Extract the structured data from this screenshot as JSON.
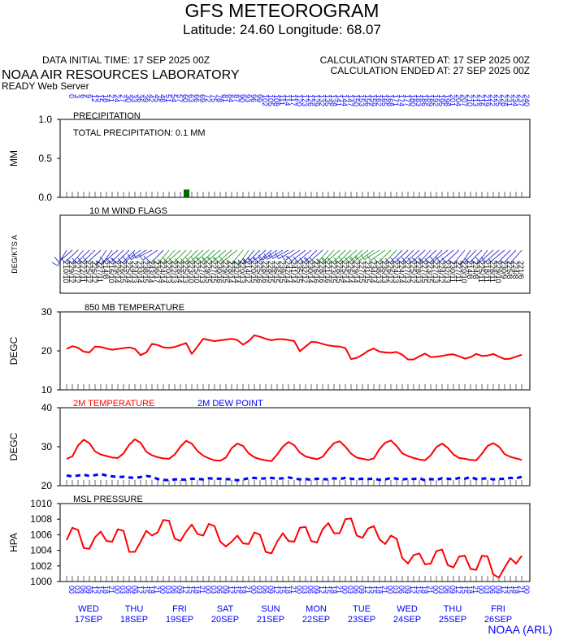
{
  "header": {
    "title": "GFS METEOROGRAM",
    "location": "Latitude: 24.60 Longitude:  68.07",
    "initial_time": "DATA INITIAL TIME: 17 SEP 2025 00Z",
    "calc_started": "CALCULATION STARTED AT: 17 SEP 2025 00Z",
    "calc_ended": "CALCULATION ENDED AT: 27 SEP 2025 00Z",
    "lab": "NOAA AIR RESOURCES LABORATORY",
    "server": "READY Web Server",
    "credit": "NOAA (ARL)"
  },
  "colors": {
    "red": "#ff0000",
    "blue": "#0000ff",
    "green": "#006600",
    "wind_blue": "#3333cc",
    "wind_green": "#339933"
  },
  "forecast_hours": [
    0,
    3,
    6,
    9,
    12,
    15,
    18,
    21,
    24,
    27,
    30,
    33,
    36,
    39,
    42,
    45,
    48,
    51,
    54,
    57,
    60,
    63,
    66,
    69,
    72,
    75,
    78,
    81,
    84,
    87,
    90,
    93,
    96,
    99,
    102,
    105,
    108,
    111,
    114,
    117,
    120,
    123,
    126,
    129,
    132,
    135,
    138,
    141,
    144,
    147,
    150,
    153,
    156,
    159,
    162,
    165,
    168,
    171,
    174,
    177,
    180,
    183,
    186,
    189,
    192,
    195,
    198,
    201,
    204,
    207,
    210,
    213,
    216,
    219,
    222,
    225,
    228,
    231,
    234,
    237,
    240
  ],
  "hour_labels": [
    "00",
    "03",
    "06",
    "09",
    "12",
    "15",
    "18",
    "21"
  ],
  "days": [
    {
      "dow": "WED",
      "date": "17SEP"
    },
    {
      "dow": "THU",
      "date": "18SEP"
    },
    {
      "dow": "FRI",
      "date": "19SEP"
    },
    {
      "dow": "SAT",
      "date": "20SEP"
    },
    {
      "dow": "SUN",
      "date": "21SEP"
    },
    {
      "dow": "MON",
      "date": "22SEP"
    },
    {
      "dow": "TUE",
      "date": "23SEP"
    },
    {
      "dow": "WED",
      "date": "24SEP"
    },
    {
      "dow": "THU",
      "date": "25SEP"
    },
    {
      "dow": "FRI",
      "date": "26SEP"
    }
  ],
  "chart_data": [
    {
      "type": "bar",
      "title": "PRECIPITATION",
      "annotation": "TOTAL PRECIPITATION:   0.1 MM",
      "ylabel": "MM",
      "ylim": [
        0,
        1
      ],
      "yticks": [
        "0.0",
        "0.5",
        "1.0"
      ],
      "x_hours": [
        63
      ],
      "values": [
        0.1
      ]
    },
    {
      "type": "table",
      "title": "10 M  WIND FLAGS",
      "ylabel": "DEG/KTS  A",
      "directions": [
        210,
        229,
        227,
        222,
        225,
        226,
        227,
        214,
        216,
        229,
        226,
        225,
        224,
        233,
        238,
        243,
        236,
        224,
        220,
        222,
        228,
        225,
        223,
        225,
        227,
        229,
        227,
        230,
        229,
        228,
        232,
        220,
        214,
        220,
        225,
        228,
        228,
        236,
        239,
        242,
        241,
        235,
        232,
        230,
        226,
        228,
        221,
        223,
        228,
        225,
        226,
        229,
        227,
        231,
        234,
        238,
        235,
        226,
        224,
        224,
        227,
        225,
        228,
        227,
        223,
        227,
        224,
        232,
        230,
        227,
        220,
        214,
        224,
        225,
        218,
        228,
        229,
        230,
        225,
        224,
        221
      ],
      "speeds": [
        10,
        12,
        12,
        11,
        12,
        12,
        11,
        8,
        10,
        14,
        15,
        14,
        13,
        14,
        15,
        14,
        17,
        14,
        13,
        13,
        14,
        13,
        10,
        10,
        13,
        15,
        15,
        16,
        15,
        14,
        14,
        13,
        12,
        15,
        16,
        16,
        15,
        15,
        15,
        14,
        14,
        15,
        12,
        14,
        16,
        16,
        16,
        15,
        15,
        14,
        14,
        14,
        15,
        15,
        14,
        13,
        13,
        12,
        13,
        14,
        13,
        12,
        13,
        15,
        15,
        13,
        12,
        13,
        11,
        11,
        10,
        8,
        8,
        11,
        11,
        11,
        10,
        9,
        8,
        8,
        6
      ]
    },
    {
      "type": "line",
      "title": "850 MB  TEMPERATURE",
      "ylabel": "DEGC",
      "ylim": [
        10,
        30
      ],
      "yticks": [
        "10",
        "20",
        "30"
      ],
      "series": [
        {
          "values": [
            20.5,
            21.2,
            20.8,
            19.8,
            19.6,
            21.1,
            21.0,
            20.6,
            20.3,
            20.5,
            20.7,
            20.9,
            20.5,
            18.9,
            19.6,
            21.8,
            21.5,
            20.9,
            20.8,
            21.0,
            21.5,
            22.0,
            19.2,
            21.1,
            23.1,
            22.8,
            22.5,
            22.7,
            22.9,
            23.1,
            22.8,
            21.6,
            22.5,
            24.0,
            23.6,
            23.1,
            22.7,
            23.0,
            23.0,
            22.8,
            22.5,
            19.9,
            21.1,
            22.3,
            22.2,
            21.8,
            21.4,
            21.2,
            21.1,
            20.7,
            17.9,
            18.2,
            19.0,
            20.0,
            20.6,
            19.8,
            19.6,
            19.5,
            19.7,
            19.0,
            17.8,
            17.8,
            18.6,
            19.3,
            18.4,
            18.5,
            18.7,
            19.0,
            19.1,
            18.6,
            18.0,
            18.4,
            19.2,
            18.7,
            18.8,
            19.2,
            18.5,
            17.9,
            18.0,
            18.5,
            19.0
          ]
        }
      ]
    },
    {
      "type": "line",
      "ylabel": "DEGC",
      "ylim": [
        20,
        40
      ],
      "yticks": [
        "20",
        "30",
        "40"
      ],
      "series": [
        {
          "name": "2M TEMPERATURE",
          "values": [
            26.9,
            27.5,
            30.3,
            31.8,
            30.9,
            28.8,
            28.0,
            27.6,
            27.2,
            27.1,
            28.3,
            30.5,
            31.9,
            31.0,
            28.7,
            27.8,
            27.3,
            27.0,
            26.9,
            28.0,
            30.0,
            31.5,
            30.8,
            28.9,
            27.7,
            27.0,
            26.5,
            26.4,
            27.2,
            29.6,
            30.8,
            30.2,
            28.3,
            27.3,
            26.8,
            26.5,
            26.3,
            28.0,
            30.0,
            31.2,
            30.4,
            28.5,
            27.5,
            27.1,
            26.8,
            27.4,
            29.3,
            30.9,
            31.4,
            30.0,
            28.2,
            27.2,
            26.9,
            26.6,
            27.0,
            29.4,
            31.0,
            31.6,
            30.2,
            28.3,
            27.6,
            27.1,
            26.7,
            26.5,
            27.8,
            29.9,
            30.8,
            29.7,
            28.0,
            27.1,
            26.9,
            26.6,
            26.5,
            28.2,
            30.2,
            30.9,
            30.0,
            28.1,
            27.4,
            27.0,
            26.6
          ]
        },
        {
          "name": "2M  DEW POINT",
          "values": [
            22.6,
            22.4,
            22.6,
            22.8,
            22.5,
            22.7,
            23.0,
            22.6,
            22.4,
            22.2,
            22.3,
            22.1,
            22.0,
            22.2,
            22.5,
            22.3,
            21.7,
            21.5,
            21.4,
            21.6,
            21.6,
            21.5,
            21.8,
            21.7,
            21.6,
            21.9,
            21.8,
            21.8,
            21.7,
            21.6,
            21.4,
            21.6,
            21.9,
            22.0,
            21.8,
            21.9,
            22.0,
            21.8,
            21.9,
            22.1,
            21.9,
            21.6,
            21.7,
            21.5,
            21.8,
            21.7,
            21.6,
            21.9,
            21.7,
            22.0,
            21.8,
            21.6,
            21.8,
            21.7,
            21.8,
            21.5,
            21.6,
            22.0,
            21.8,
            21.6,
            21.8,
            21.7,
            21.9,
            21.4,
            21.7,
            21.5,
            21.9,
            21.8,
            21.6,
            22.0,
            21.8,
            22.2,
            21.7,
            21.8,
            21.9,
            21.6,
            21.7,
            21.8,
            22.0,
            21.9,
            22.3
          ]
        }
      ]
    },
    {
      "type": "line",
      "title": "MSL PRESSURE",
      "ylabel": "HPA",
      "ylim": [
        1000,
        1010
      ],
      "yticks": [
        "1000",
        "1002",
        "1004",
        "1006",
        "1008",
        "1010"
      ],
      "series": [
        {
          "values": [
            1005.3,
            1006.9,
            1006.6,
            1004.3,
            1004.2,
            1005.7,
            1006.4,
            1005.2,
            1005.1,
            1006.7,
            1006.5,
            1003.8,
            1003.8,
            1005.1,
            1006.5,
            1005.9,
            1006.3,
            1007.9,
            1007.8,
            1005.5,
            1005.2,
            1006.4,
            1007.3,
            1006.1,
            1005.9,
            1007.4,
            1007.1,
            1005.1,
            1004.5,
            1005.1,
            1005.9,
            1004.9,
            1004.8,
            1006.3,
            1006.0,
            1003.8,
            1003.6,
            1005.1,
            1006.2,
            1005.2,
            1005.1,
            1006.9,
            1007.0,
            1005.2,
            1005.0,
            1006.7,
            1007.5,
            1006.2,
            1006.2,
            1008.0,
            1008.1,
            1005.9,
            1005.6,
            1006.8,
            1007.1,
            1005.4,
            1004.8,
            1005.9,
            1005.5,
            1003.0,
            1002.3,
            1003.4,
            1003.6,
            1002.2,
            1002.3,
            1003.9,
            1004.1,
            1002.1,
            1001.8,
            1003.2,
            1003.3,
            1001.6,
            1001.5,
            1003.3,
            1003.2,
            1000.9,
            1000.5,
            1001.8,
            1003.0,
            1002.3,
            1003.3
          ]
        }
      ]
    }
  ]
}
